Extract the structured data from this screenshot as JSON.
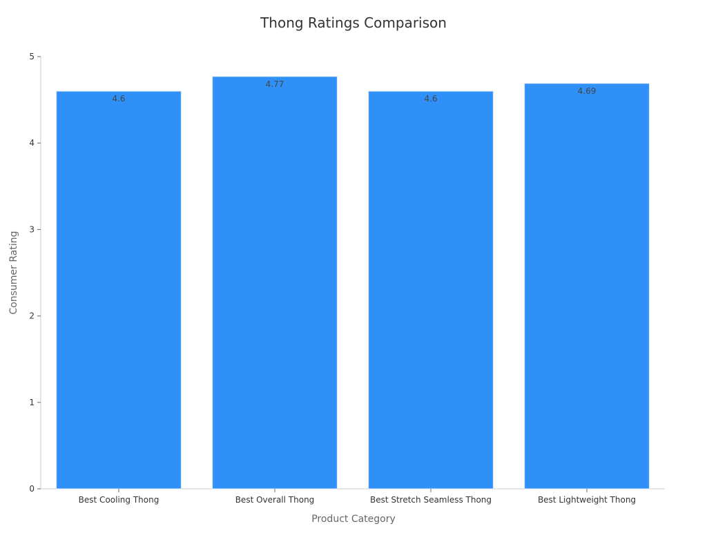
{
  "chart_data": {
    "type": "bar",
    "title": "Thong Ratings Comparison",
    "xlabel": "Product Category",
    "ylabel": "Consumer Rating",
    "categories": [
      "Best Cooling Thong",
      "Best Overall Thong",
      "Best Stretch Seamless Thong",
      "Best Lightweight Thong"
    ],
    "values": [
      4.6,
      4.77,
      4.6,
      4.69
    ],
    "data_labels": [
      "4.6",
      "4.77",
      "4.6",
      "4.69"
    ],
    "ylim": [
      0,
      5
    ],
    "yticks": [
      0,
      1,
      2,
      3,
      4,
      5
    ],
    "grid": false,
    "legend": "none",
    "bar_color": "#2f91f8",
    "bar_edge_color": "#dce8f5"
  }
}
